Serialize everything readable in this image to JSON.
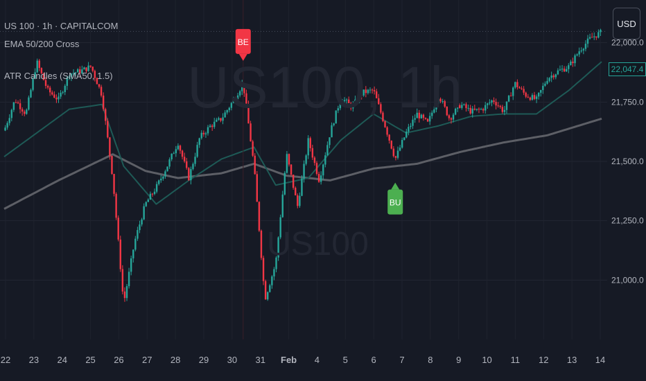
{
  "legend": {
    "line1": "US 100 · 1h · CAPITALCOM",
    "line2": "EMA 50/200 Cross",
    "line3": "ATR Candles (SMA50, 1.5)"
  },
  "watermark": {
    "big": "US100, 1h",
    "small": "US100"
  },
  "currency_button": "USD",
  "last_price": "22,047.4",
  "colors": {
    "background": "#161a25",
    "bull": "#26a69a",
    "bear": "#f23645",
    "ema50": "#1e5a56",
    "ema200": "#5d5f66",
    "signal_bull": "#4caf50",
    "signal_bear": "#f23645"
  },
  "chart_data": {
    "type": "candlestick",
    "symbol": "US 100",
    "timeframe": "1h",
    "ylim": [
      20750,
      22180
    ],
    "y_ticks": [
      "21,000.0",
      "21,250.0",
      "21,500.0",
      "21,750.0",
      "22,000.0"
    ],
    "y_tick_values": [
      21000,
      21250,
      21500,
      21750,
      22000
    ],
    "x_ticks": [
      "22",
      "23",
      "24",
      "25",
      "26",
      "27",
      "28",
      "29",
      "30",
      "31",
      "Feb",
      "4",
      "5",
      "6",
      "7",
      "8",
      "9",
      "10",
      "11",
      "12",
      "13",
      "14"
    ],
    "close_path": [
      [
        0,
        21630
      ],
      [
        1,
        21760
      ],
      [
        2,
        21700
      ],
      [
        3,
        21920
      ],
      [
        4,
        21800
      ],
      [
        5,
        21760
      ],
      [
        6,
        21870
      ],
      [
        7,
        21880
      ],
      [
        8,
        21900
      ],
      [
        9,
        21780
      ],
      [
        10,
        21430
      ],
      [
        11,
        20900
      ],
      [
        12,
        21160
      ],
      [
        13,
        21320
      ],
      [
        14,
        21390
      ],
      [
        15,
        21480
      ],
      [
        16,
        21580
      ],
      [
        17,
        21430
      ],
      [
        18,
        21600
      ],
      [
        19,
        21650
      ],
      [
        20,
        21680
      ],
      [
        21,
        21750
      ],
      [
        22,
        21830
      ],
      [
        23,
        21480
      ],
      [
        24,
        20920
      ],
      [
        25,
        21070
      ],
      [
        26,
        21530
      ],
      [
        27,
        21310
      ],
      [
        28,
        21590
      ],
      [
        29,
        21420
      ],
      [
        30,
        21620
      ],
      [
        31,
        21770
      ],
      [
        32,
        21730
      ],
      [
        33,
        21790
      ],
      [
        34,
        21800
      ],
      [
        35,
        21660
      ],
      [
        36,
        21510
      ],
      [
        37,
        21620
      ],
      [
        38,
        21700
      ],
      [
        39,
        21660
      ],
      [
        40,
        21780
      ],
      [
        41,
        21680
      ],
      [
        42,
        21740
      ],
      [
        43,
        21710
      ],
      [
        44,
        21720
      ],
      [
        45,
        21760
      ],
      [
        46,
        21710
      ],
      [
        47,
        21830
      ],
      [
        48,
        21780
      ],
      [
        49,
        21760
      ],
      [
        50,
        21850
      ],
      [
        51,
        21880
      ],
      [
        52,
        21900
      ],
      [
        53,
        21970
      ],
      [
        54,
        22020
      ],
      [
        55,
        22045
      ]
    ],
    "ema50": [
      [
        0,
        21520
      ],
      [
        3,
        21620
      ],
      [
        6,
        21720
      ],
      [
        9,
        21740
      ],
      [
        11,
        21480
      ],
      [
        14,
        21320
      ],
      [
        17,
        21420
      ],
      [
        20,
        21510
      ],
      [
        23,
        21560
      ],
      [
        25,
        21400
      ],
      [
        28,
        21430
      ],
      [
        31,
        21590
      ],
      [
        34,
        21700
      ],
      [
        37,
        21620
      ],
      [
        40,
        21650
      ],
      [
        43,
        21690
      ],
      [
        46,
        21700
      ],
      [
        49,
        21700
      ],
      [
        52,
        21800
      ],
      [
        55,
        21920
      ]
    ],
    "ema200": [
      [
        0,
        21300
      ],
      [
        5,
        21420
      ],
      [
        10,
        21530
      ],
      [
        13,
        21460
      ],
      [
        16,
        21430
      ],
      [
        20,
        21450
      ],
      [
        23,
        21490
      ],
      [
        26,
        21440
      ],
      [
        30,
        21420
      ],
      [
        34,
        21470
      ],
      [
        38,
        21490
      ],
      [
        42,
        21540
      ],
      [
        46,
        21580
      ],
      [
        50,
        21610
      ],
      [
        55,
        21680
      ]
    ],
    "signals": [
      {
        "label": "BE",
        "type": "bearish",
        "index": 22
      },
      {
        "label": "BU",
        "type": "bullish",
        "index": 36
      }
    ],
    "last_price": 22047.4
  }
}
